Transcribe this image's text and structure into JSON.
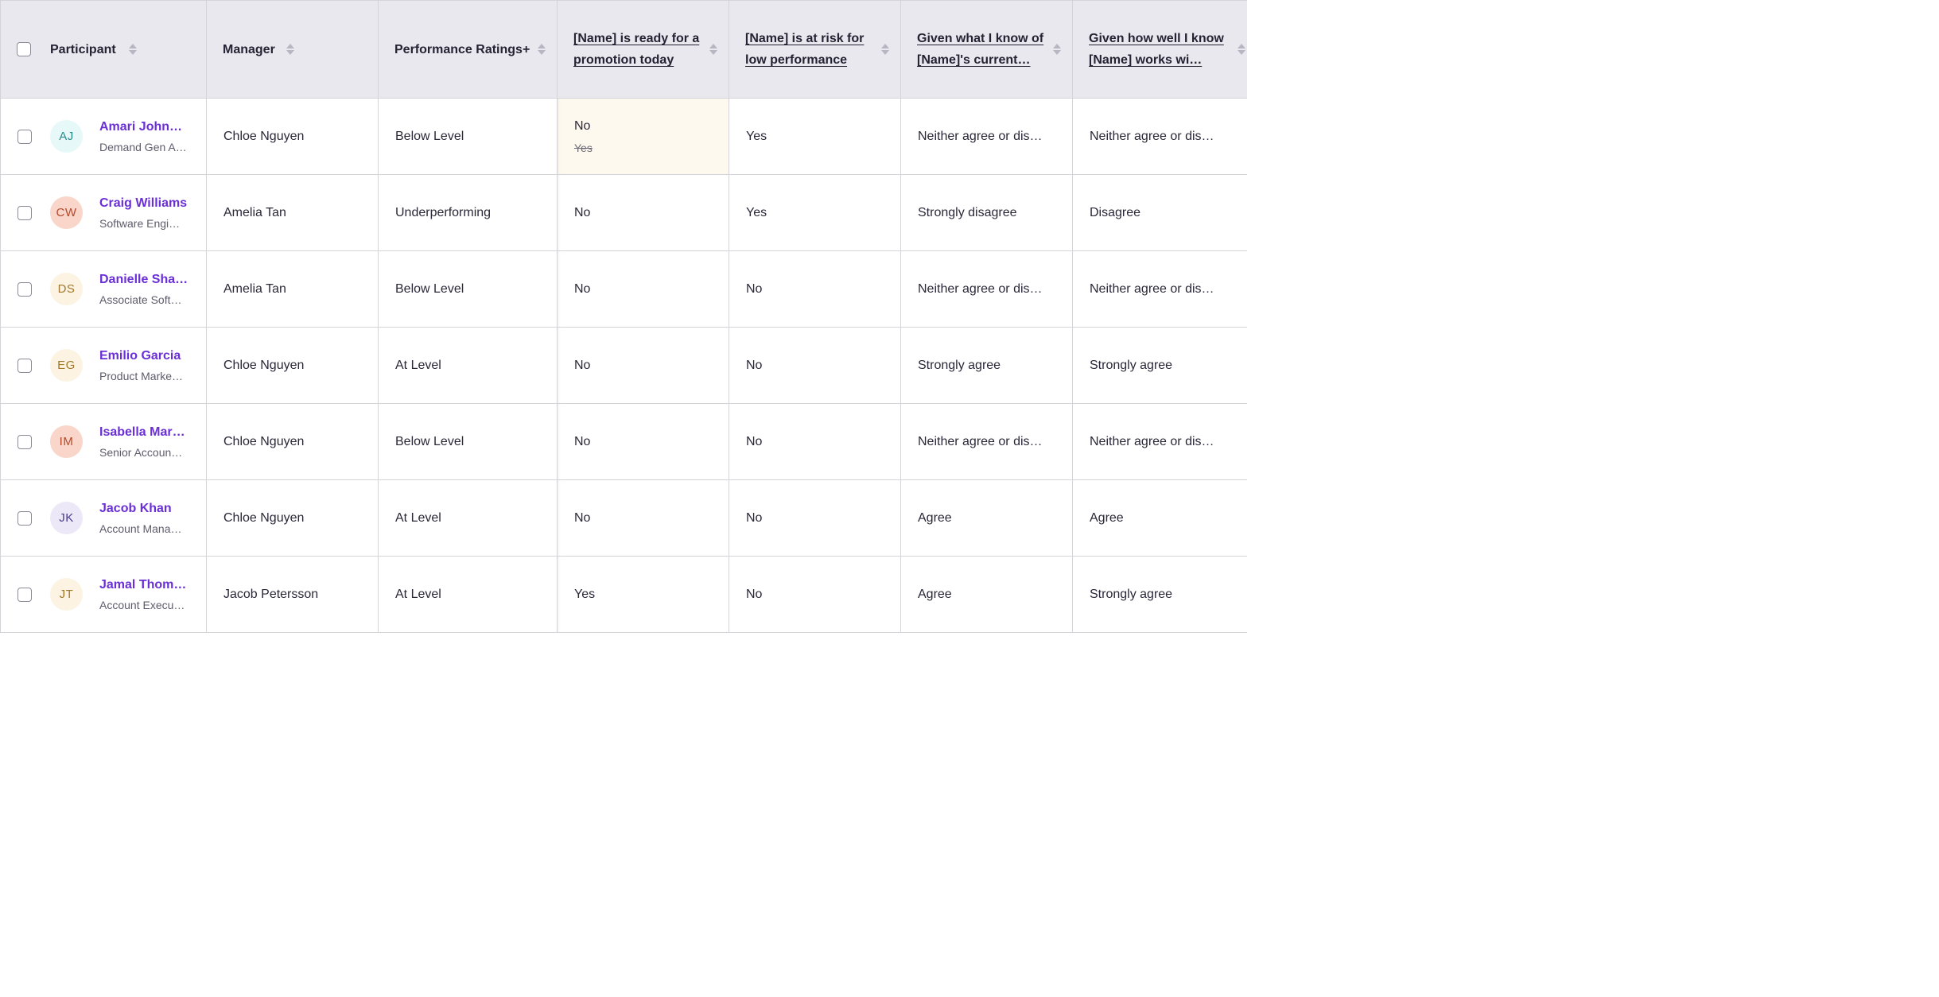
{
  "columns": [
    {
      "label": "Participant",
      "link": false
    },
    {
      "label": "Manager",
      "link": false
    },
    {
      "label": "Performance Ratings+",
      "link": false
    },
    {
      "label": "[Name] is ready for a promotion today",
      "link": true
    },
    {
      "label": "[Name] is at risk for low performance",
      "link": true
    },
    {
      "label": "Given what I know of [Name]'s current…",
      "link": true
    },
    {
      "label": "Given how well I know [Name] works wi…",
      "link": true
    }
  ],
  "colors": {
    "name_link": "#6a2fd6",
    "header_bg": "#e8e8ee",
    "changed_cell_bg": "#fdf9ee"
  },
  "rows": [
    {
      "initials": "AJ",
      "name": "Amari Johns…",
      "title": "Demand Gen A…",
      "manager": "Chloe Nguyen",
      "rating": "Below Level",
      "promotion": "No",
      "promotion_previous": "Yes",
      "risk": "Yes",
      "q3": "Neither agree or dis…",
      "q4": "Neither agree or dis…",
      "avatar_bg": "#e6f8f7",
      "avatar_fg": "#2a8c8a"
    },
    {
      "initials": "CW",
      "name": "Craig Williams",
      "title": "Software Engi…",
      "manager": "Amelia Tan",
      "rating": "Underperforming",
      "promotion": "No",
      "risk": "Yes",
      "q3": "Strongly disagree",
      "q4": "Disagree",
      "avatar_bg": "#f9d6c9",
      "avatar_fg": "#b24a2c"
    },
    {
      "initials": "DS",
      "name": "Danielle Sha…",
      "title": "Associate Soft…",
      "manager": "Amelia Tan",
      "rating": "Below Level",
      "promotion": "No",
      "risk": "No",
      "q3": "Neither agree or dis…",
      "q4": "Neither agree or dis…",
      "avatar_bg": "#fcf3e3",
      "avatar_fg": "#a07a2a"
    },
    {
      "initials": "EG",
      "name": "Emilio Garcia",
      "title": "Product Marke…",
      "manager": "Chloe Nguyen",
      "rating": "At Level",
      "promotion": "No",
      "risk": "No",
      "q3": "Strongly agree",
      "q4": "Strongly agree",
      "avatar_bg": "#fcf3e3",
      "avatar_fg": "#a07a2a"
    },
    {
      "initials": "IM",
      "name": "Isabella Mar…",
      "title": "Senior Accoun…",
      "manager": "Chloe Nguyen",
      "rating": "Below Level",
      "promotion": "No",
      "risk": "No",
      "q3": "Neither agree or dis…",
      "q4": "Neither agree or dis…",
      "avatar_bg": "#f9d6c9",
      "avatar_fg": "#b24a2c"
    },
    {
      "initials": "JK",
      "name": "Jacob Khan",
      "title": "Account Mana…",
      "manager": "Chloe Nguyen",
      "rating": "At Level",
      "promotion": "No",
      "risk": "No",
      "q3": "Agree",
      "q4": "Agree",
      "avatar_bg": "#ece8f8",
      "avatar_fg": "#4a3a8c"
    },
    {
      "initials": "JT",
      "name": "Jamal Thom…",
      "title": "Account Execu…",
      "manager": "Jacob Petersson",
      "rating": "At Level",
      "promotion": "Yes",
      "risk": "No",
      "q3": "Agree",
      "q4": "Strongly agree",
      "avatar_bg": "#fcf3e3",
      "avatar_fg": "#a07a2a"
    }
  ]
}
